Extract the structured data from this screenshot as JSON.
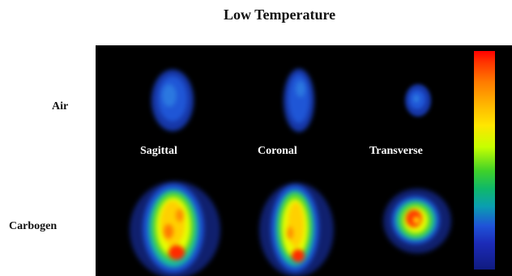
{
  "title": "Low Temperature",
  "rows": {
    "air": "Air",
    "carbogen": "Carbogen"
  },
  "views": {
    "sagittal": "Sagittal",
    "coronal": "Coronal",
    "transverse": "Transverse"
  },
  "colors": {
    "background": "#000000",
    "low": "#101b80",
    "mid": "#3ed12a",
    "high": "#ff0000"
  }
}
